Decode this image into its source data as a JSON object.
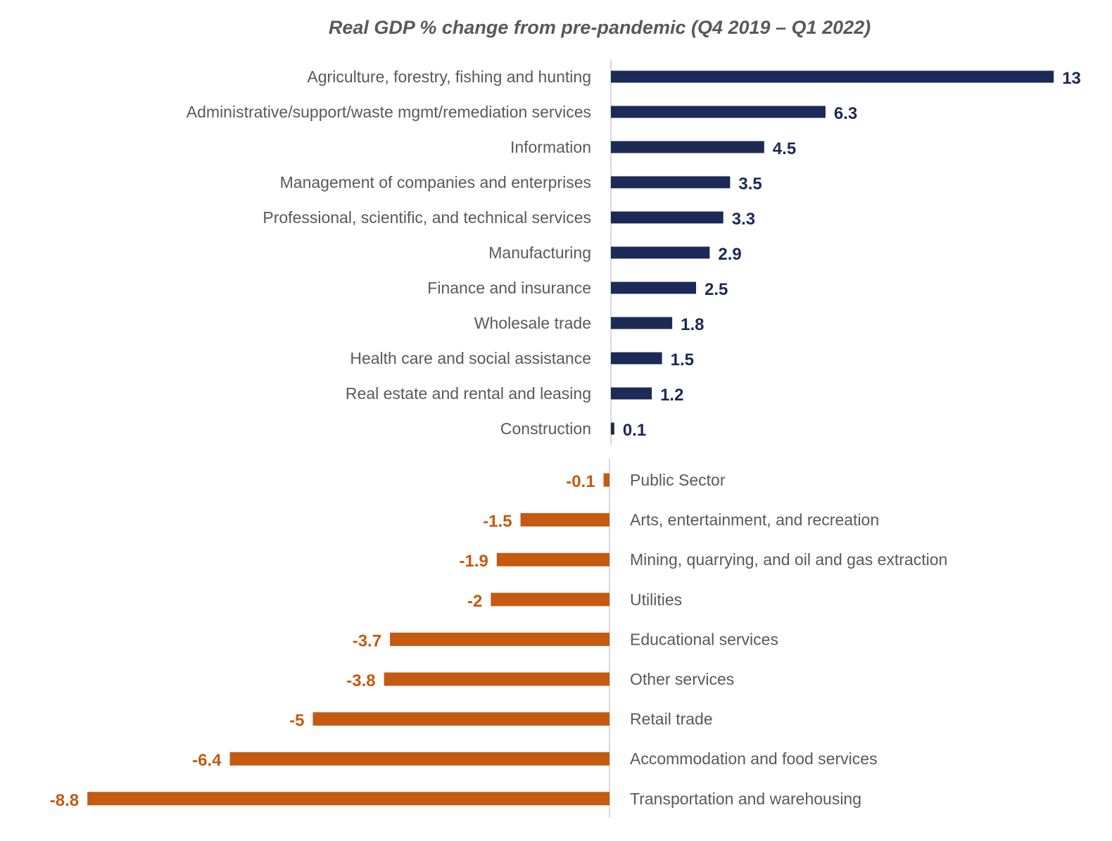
{
  "chart_data": [
    {
      "type": "bar",
      "orientation": "horizontal",
      "title": "Real GDP % change from pre-pandemic (Q4 2019 – Q1 2022)",
      "color": "#1b2a57",
      "categories": [
        "Agriculture, forestry, fishing and hunting",
        "Administrative/support/waste mgmt/remediation services",
        "Information",
        "Management of companies and enterprises",
        "Professional, scientific, and technical services",
        "Manufacturing",
        "Finance and insurance",
        "Wholesale trade",
        "Health care and social assistance",
        "Real estate and rental and leasing",
        "Construction"
      ],
      "values": [
        13,
        6.3,
        4.5,
        3.5,
        3.3,
        2.9,
        2.5,
        1.8,
        1.5,
        1.2,
        0.1
      ],
      "labels": [
        "13",
        "6.3",
        "4.5",
        "3.5",
        "3.3",
        "2.9",
        "2.5",
        "1.8",
        "1.5",
        "1.2",
        "0.1"
      ]
    },
    {
      "type": "bar",
      "orientation": "horizontal",
      "color": "#c55a11",
      "categories": [
        "Public Sector",
        "Arts, entertainment, and recreation",
        "Mining, quarrying, and oil and gas extraction",
        "Utilities",
        "Educational services",
        "Other services",
        "Retail trade",
        "Accommodation and food services",
        "Transportation and warehousing"
      ],
      "values": [
        -0.1,
        -1.5,
        -1.9,
        -2,
        -3.7,
        -3.8,
        -5,
        -6.4,
        -8.8
      ],
      "labels": [
        "-0.1",
        "-1.5",
        "-1.9",
        "-2",
        "-3.7",
        "-3.8",
        "-5",
        "-6.4",
        "-8.8"
      ]
    }
  ]
}
